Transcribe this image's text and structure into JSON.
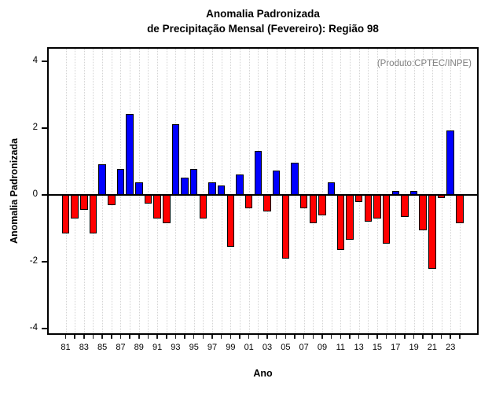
{
  "title": {
    "line1": "Anomalia Padronizada",
    "line2": "de Precipitação Mensal (Fevereiro): Região 98"
  },
  "annotation": "(Produto:CPTEC/INPE)",
  "axes": {
    "y_label": "Anomalia Padronizada",
    "x_label": "Ano",
    "y_ticks": [
      4,
      2,
      0,
      -2,
      -4
    ],
    "x_tick_labels": [
      "81",
      "83",
      "85",
      "87",
      "89",
      "91",
      "93",
      "95",
      "97",
      "99",
      "01",
      "03",
      "05",
      "07",
      "09",
      "11",
      "13",
      "15",
      "17",
      "19",
      "21",
      "23"
    ]
  },
  "colors": {
    "positive": "#0000ff",
    "negative": "#ff0000",
    "bar_border": "#000000",
    "grid": "#d4d4d4",
    "annotation_text": "#808080",
    "axis": "#000000"
  },
  "chart_data": {
    "type": "bar",
    "title": "Anomalia Padronizada de Precipitação Mensal (Fevereiro): Região 98",
    "xlabel": "Ano",
    "ylabel": "Anomalia Padronizada",
    "ylim": [
      -4.4,
      4.4
    ],
    "grid": "vertical-dotted",
    "legend": "none",
    "categories": [
      1981,
      1982,
      1983,
      1984,
      1985,
      1986,
      1987,
      1988,
      1989,
      1990,
      1991,
      1992,
      1993,
      1994,
      1995,
      1996,
      1997,
      1998,
      1999,
      2000,
      2001,
      2002,
      2003,
      2004,
      2005,
      2006,
      2007,
      2008,
      2009,
      2010,
      2011,
      2012,
      2013,
      2014,
      2015,
      2016,
      2017,
      2018,
      2019,
      2020,
      2021,
      2022,
      2023,
      2024
    ],
    "values": [
      -1.15,
      -0.7,
      -0.45,
      -1.15,
      0.9,
      -0.3,
      0.75,
      2.4,
      0.35,
      -0.25,
      -0.7,
      -0.85,
      2.1,
      0.5,
      0.75,
      -0.7,
      0.35,
      0.25,
      -1.55,
      0.6,
      -0.4,
      1.3,
      -0.5,
      0.7,
      -1.9,
      0.95,
      -0.4,
      -0.85,
      -0.6,
      0.35,
      -1.65,
      -1.35,
      -0.2,
      -0.8,
      -0.7,
      -1.45,
      0.1,
      -0.65,
      0.1,
      -1.05,
      -2.2,
      -0.1,
      1.9,
      -0.85
    ],
    "series_color_rule": "blue if value >= 0 else red"
  }
}
